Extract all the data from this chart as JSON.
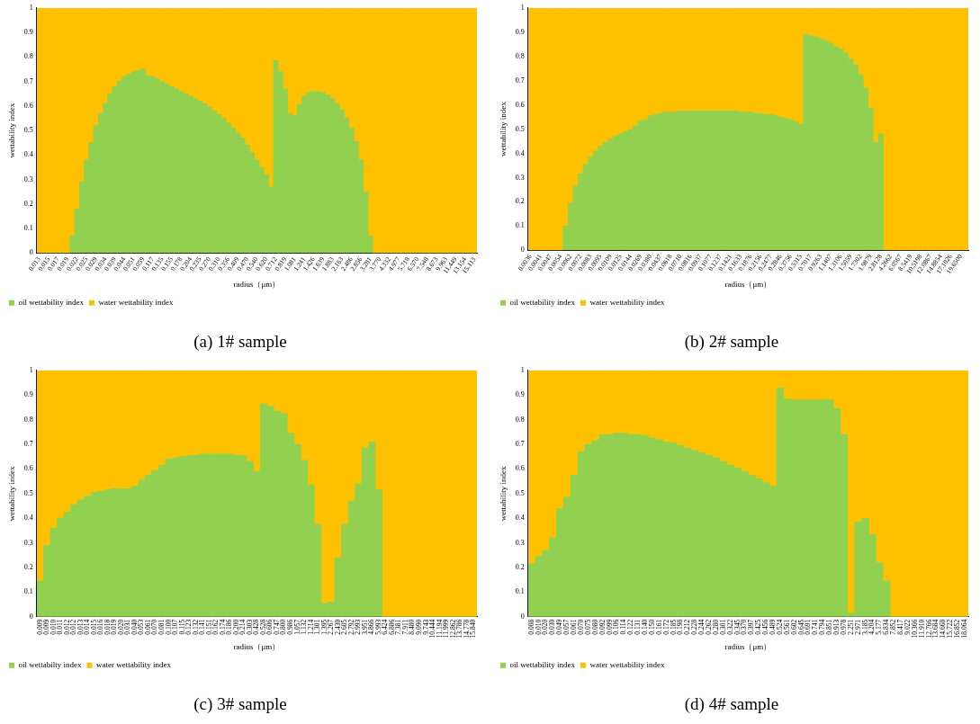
{
  "chart_data": [
    {
      "type": "bar",
      "title": "(a) 1# sample",
      "xlabel": "radius（μm）",
      "ylabel": "wettability index",
      "stacked": true,
      "grid": false,
      "legend": "bottom left",
      "ylim": [
        0,
        1
      ],
      "yticks": [
        0,
        0.1,
        0.2,
        0.3,
        0.4,
        0.5,
        0.6,
        0.7,
        0.8,
        0.9,
        1
      ],
      "categories": [
        "0.013",
        null,
        "0.015",
        null,
        "0.017",
        null,
        "0.019",
        null,
        "0.022",
        null,
        "0.025",
        null,
        "0.029",
        null,
        "0.034",
        null,
        "0.039",
        null,
        "0.044",
        null,
        "0.051",
        null,
        "0.059",
        null,
        "0.117",
        null,
        "0.135",
        null,
        "0.155",
        null,
        "0.178",
        null,
        "0.204",
        null,
        "0.235",
        null,
        "0.270",
        null,
        "0.310",
        null,
        "0.356",
        null,
        "0.409",
        null,
        "0.470",
        null,
        "0.540",
        null,
        "0.620",
        null,
        "0.712",
        null,
        "0.819",
        null,
        "1.081",
        null,
        "1.241",
        null,
        "1.426",
        null,
        "1.639",
        null,
        "1.883",
        null,
        "2.163",
        null,
        "2.486",
        null,
        "2.856",
        null,
        "3.281",
        null,
        "3.770",
        null,
        "4.332",
        null,
        "4.977",
        null,
        "5.718",
        null,
        "6.570",
        null,
        "7.548",
        null,
        "8.673",
        null,
        "9.963",
        null,
        "11.449",
        null,
        "13.154",
        null,
        "15.113"
      ],
      "series": [
        {
          "name": "oil wettability index",
          "color": "#92d050",
          "values": [
            0,
            0,
            0,
            0,
            0,
            0,
            0,
            0.07,
            0.18,
            0.29,
            0.38,
            0.45,
            0.52,
            0.57,
            0.61,
            0.65,
            0.68,
            0.7,
            0.72,
            0.73,
            0.74,
            0.745,
            0.75,
            0.725,
            0.72,
            0.71,
            0.7,
            0.69,
            0.68,
            0.67,
            0.66,
            0.65,
            0.64,
            0.63,
            0.62,
            0.61,
            0.595,
            0.58,
            0.565,
            0.55,
            0.53,
            0.51,
            0.49,
            0.47,
            0.44,
            0.41,
            0.38,
            0.35,
            0.32,
            0.27,
            0.785,
            0.74,
            0.67,
            0.57,
            0.56,
            0.605,
            0.64,
            0.655,
            0.66,
            0.66,
            0.655,
            0.645,
            0.63,
            0.61,
            0.585,
            0.55,
            0.51,
            0.455,
            0.38,
            0.25,
            0.07,
            0,
            0,
            0,
            0,
            0,
            0,
            0,
            0,
            0,
            0,
            0,
            0,
            0,
            0,
            0,
            0,
            0,
            0,
            0,
            0,
            0,
            0
          ]
        },
        {
          "name": "water wettability index",
          "color": "#ffc000",
          "values": [
            1,
            1,
            1,
            1,
            1,
            1,
            1,
            0.93,
            0.82,
            0.71,
            0.62,
            0.55,
            0.48,
            0.43,
            0.39,
            0.35,
            0.32,
            0.3,
            0.28,
            0.27,
            0.26,
            0.255,
            0.25,
            0.275,
            0.28,
            0.29,
            0.3,
            0.31,
            0.32,
            0.33,
            0.34,
            0.35,
            0.36,
            0.37,
            0.38,
            0.39,
            0.405,
            0.42,
            0.435,
            0.45,
            0.47,
            0.49,
            0.51,
            0.53,
            0.56,
            0.59,
            0.62,
            0.65,
            0.68,
            0.73,
            0.215,
            0.26,
            0.33,
            0.43,
            0.44,
            0.395,
            0.36,
            0.345,
            0.34,
            0.34,
            0.345,
            0.355,
            0.37,
            0.39,
            0.415,
            0.45,
            0.49,
            0.545,
            0.62,
            0.75,
            0.93,
            1,
            1,
            1,
            1,
            1,
            1,
            1,
            1,
            1,
            1,
            1,
            1,
            1,
            1,
            1,
            1,
            1,
            1,
            1,
            1,
            1,
            1
          ]
        }
      ]
    },
    {
      "type": "bar",
      "title": "(b) 2# sample",
      "xlabel": "radius（μm）",
      "ylabel": "wettability index",
      "stacked": true,
      "grid": false,
      "legend": "bottom left",
      "ylim": [
        0,
        1
      ],
      "yticks": [
        0,
        0.1,
        0.2,
        0.3,
        0.4,
        0.5,
        0.6,
        0.7,
        0.8,
        0.9,
        1
      ],
      "categories": [
        "0.0036",
        null,
        "0.0041",
        null,
        "0.0047",
        null,
        "0.0054",
        null,
        "0.0062",
        null,
        "0.0072",
        null,
        "0.0083",
        null,
        "0.0095",
        null,
        "0.0109",
        null,
        "0.0125",
        null,
        "0.0144",
        null,
        "0.0269",
        null,
        "0.0380",
        null,
        "0.0437",
        null,
        "0.0618",
        null,
        "0.0710",
        null,
        "0.0816",
        null,
        "0.0937",
        null,
        "0.1077",
        null,
        "0.1237",
        null,
        "0.1421",
        null,
        "0.1633",
        null,
        "0.1876",
        null,
        "0.2156",
        null,
        "0.2477",
        null,
        "0.2846",
        null,
        "0.3756",
        null,
        "0.5315",
        null,
        "0.7017",
        null,
        "0.9263",
        null,
        "1.1407",
        null,
        "1.3106",
        null,
        "1.5059",
        null,
        "1.7302",
        null,
        "1.9879",
        null,
        "2.8128",
        null,
        "4.2662",
        null,
        "6.0567",
        null,
        "8.5419",
        null,
        "10.5198",
        null,
        "12.0867",
        null,
        "14.8854",
        null,
        "17.1026",
        null,
        "19.6500",
        null
      ],
      "series": [
        {
          "name": "oil wettability index",
          "color": "#92d050",
          "values": [
            0,
            0,
            0,
            0,
            0,
            0,
            0,
            0.1,
            0.195,
            0.265,
            0.315,
            0.355,
            0.385,
            0.41,
            0.43,
            0.445,
            0.46,
            0.47,
            0.48,
            0.49,
            0.5,
            0.515,
            0.535,
            0.54,
            0.555,
            0.56,
            0.565,
            0.57,
            0.57,
            0.57,
            0.575,
            0.575,
            0.575,
            0.575,
            0.575,
            0.575,
            0.575,
            0.575,
            0.575,
            0.575,
            0.575,
            0.575,
            0.57,
            0.57,
            0.57,
            0.565,
            0.565,
            0.56,
            0.56,
            0.555,
            0.55,
            0.545,
            0.54,
            0.53,
            0.52,
            0.89,
            0.885,
            0.88,
            0.875,
            0.865,
            0.855,
            0.84,
            0.83,
            0.815,
            0.79,
            0.765,
            0.725,
            0.67,
            0.585,
            0.445,
            0.48,
            0,
            0,
            0,
            0,
            0,
            0,
            0,
            0,
            0,
            0,
            0,
            0,
            0,
            0,
            0,
            0,
            0
          ]
        },
        {
          "name": "water wettability index",
          "color": "#ffc000",
          "values": [
            1,
            1,
            1,
            1,
            1,
            1,
            1,
            0.9,
            0.805,
            0.735,
            0.685,
            0.645,
            0.615,
            0.59,
            0.57,
            0.555,
            0.54,
            0.53,
            0.52,
            0.51,
            0.5,
            0.485,
            0.465,
            0.46,
            0.445,
            0.44,
            0.435,
            0.43,
            0.43,
            0.43,
            0.425,
            0.425,
            0.425,
            0.425,
            0.425,
            0.425,
            0.425,
            0.425,
            0.425,
            0.425,
            0.425,
            0.425,
            0.43,
            0.43,
            0.43,
            0.435,
            0.435,
            0.44,
            0.44,
            0.445,
            0.45,
            0.455,
            0.46,
            0.47,
            0.48,
            0.11,
            0.115,
            0.12,
            0.125,
            0.135,
            0.145,
            0.16,
            0.17,
            0.185,
            0.21,
            0.235,
            0.275,
            0.33,
            0.415,
            0.555,
            0.52,
            1,
            1,
            1,
            1,
            1,
            1,
            1,
            1,
            1,
            1,
            1,
            1,
            1,
            1,
            1,
            1,
            1
          ]
        }
      ]
    },
    {
      "type": "bar",
      "title": "(c) 3# sample",
      "xlabel": "radius（μm）",
      "ylabel": "wettability index",
      "stacked": true,
      "grid": false,
      "legend": "bottom left",
      "ylim": [
        0,
        1
      ],
      "yticks": [
        0,
        0.1,
        0.2,
        0.3,
        0.4,
        0.5,
        0.6,
        0.7,
        0.8,
        0.9,
        1
      ],
      "categories": [
        "0.009",
        "0.009",
        "0.010",
        "0.011",
        "0.012",
        "0.012",
        "0.013",
        "0.014",
        "0.015",
        "0.016",
        "0.018",
        "0.019",
        "0.020",
        "0.031",
        "0.040",
        "0.053",
        "0.061",
        "0.070",
        "0.081",
        "0.100",
        "0.107",
        "0.115",
        "0.123",
        "0.132",
        "0.141",
        "0.151",
        "0.162",
        "0.174",
        "0.186",
        "0.200",
        "0.214",
        "0.303",
        "0.428",
        "0.528",
        "0.606",
        "0.747",
        "0.800",
        "0.986",
        "1.057",
        "1.132",
        "1.214",
        "1.301",
        "1.395",
        "2.267",
        "2.430",
        "2.605",
        "2.792",
        "2.993",
        "3.951",
        "4.866",
        "5.993",
        "6.424",
        "6.886",
        "7.381",
        "7.911",
        "8.480",
        "9.090",
        "9.743",
        "10.444",
        "11.194",
        "11.999",
        "12.862",
        "13.786",
        "14.778",
        "15.840"
      ],
      "series": [
        {
          "name": "oil wettabilty index",
          "color": "#92d050",
          "values": [
            0.145,
            0.29,
            0.36,
            0.4,
            0.425,
            0.455,
            0.475,
            0.49,
            0.505,
            0.51,
            0.515,
            0.52,
            0.52,
            0.52,
            0.53,
            0.555,
            0.575,
            0.595,
            0.615,
            0.64,
            0.645,
            0.65,
            0.655,
            0.655,
            0.66,
            0.66,
            0.66,
            0.66,
            0.66,
            0.655,
            0.655,
            0.63,
            0.59,
            0.865,
            0.855,
            0.835,
            0.825,
            0.745,
            0.7,
            0.635,
            0.535,
            0.375,
            0.055,
            0.06,
            0.24,
            0.375,
            0.47,
            0.54,
            0.685,
            0.71,
            0.515,
            0,
            0,
            0,
            0,
            0,
            0,
            0,
            0,
            0,
            0,
            0,
            0,
            0,
            0
          ]
        },
        {
          "name": "water wettability index",
          "color": "#ffc000",
          "values": [
            0.855,
            0.71,
            0.64,
            0.6,
            0.575,
            0.545,
            0.525,
            0.51,
            0.495,
            0.49,
            0.485,
            0.48,
            0.48,
            0.48,
            0.47,
            0.445,
            0.425,
            0.405,
            0.385,
            0.36,
            0.355,
            0.35,
            0.345,
            0.345,
            0.34,
            0.34,
            0.34,
            0.34,
            0.34,
            0.345,
            0.345,
            0.37,
            0.41,
            0.135,
            0.145,
            0.165,
            0.175,
            0.255,
            0.3,
            0.365,
            0.465,
            0.625,
            0.945,
            0.94,
            0.76,
            0.625,
            0.53,
            0.46,
            0.315,
            0.29,
            0.485,
            1,
            1,
            1,
            1,
            1,
            1,
            1,
            1,
            1,
            1,
            1,
            1,
            1,
            1
          ]
        }
      ]
    },
    {
      "type": "bar",
      "title": "(d) 4# sample",
      "xlabel": "radius（μm）",
      "ylabel": "wettability index",
      "stacked": true,
      "grid": false,
      "legend": "bottom left",
      "ylim": [
        0,
        1
      ],
      "yticks": [
        0,
        0.1,
        0.2,
        0.3,
        0.4,
        0.5,
        0.6,
        0.7,
        0.8,
        0.9,
        1
      ],
      "categories": [
        "0.008",
        "0.010",
        "0.020",
        "0.030",
        "0.049",
        "0.057",
        "0.061",
        "0.070",
        "0.075",
        "0.080",
        "0.092",
        "0.099",
        "0.106",
        "0.114",
        "0.122",
        "0.131",
        "0.140",
        "0.150",
        "0.161",
        "0.172",
        "0.185",
        "0.198",
        "0.212",
        "0.228",
        "0.244",
        "0.262",
        "0.280",
        "0.301",
        "0.322",
        "0.345",
        "0.370",
        "0.397",
        "0.425",
        "0.456",
        "0.489",
        "0.524",
        "0.561",
        "0.602",
        "0.645",
        "0.691",
        "0.741",
        "0.794",
        "0.851",
        "0.913",
        "0.978",
        "2.251",
        "2.971",
        "3.185",
        "4.204",
        "5.177",
        "6.834",
        "7.852",
        "8.417",
        "9.022",
        "10.366",
        "11.910",
        "12.766",
        "13.684",
        "14.668",
        "15.722",
        "16.852",
        "18.064"
      ],
      "series": [
        {
          "name": "oil wettability index",
          "color": "#92d050",
          "values": [
            0.215,
            0.245,
            0.27,
            0.32,
            0.44,
            0.485,
            0.575,
            0.67,
            0.7,
            0.715,
            0.74,
            0.74,
            0.745,
            0.745,
            0.74,
            0.74,
            0.735,
            0.725,
            0.72,
            0.71,
            0.705,
            0.695,
            0.685,
            0.675,
            0.665,
            0.655,
            0.645,
            0.63,
            0.615,
            0.605,
            0.59,
            0.575,
            0.56,
            0.545,
            0.53,
            0.93,
            0.885,
            0.88,
            0.88,
            0.88,
            0.88,
            0.88,
            0.88,
            0.845,
            0.74,
            0.015,
            0.385,
            0.4,
            0.335,
            0.22,
            0.145,
            0,
            0,
            0,
            0,
            0,
            0,
            0,
            0,
            0,
            0,
            0
          ]
        },
        {
          "name": "water wettability index",
          "color": "#ffc000",
          "values": [
            0.785,
            0.755,
            0.73,
            0.68,
            0.56,
            0.515,
            0.425,
            0.33,
            0.3,
            0.285,
            0.26,
            0.26,
            0.255,
            0.255,
            0.26,
            0.26,
            0.265,
            0.275,
            0.28,
            0.29,
            0.295,
            0.305,
            0.315,
            0.325,
            0.335,
            0.345,
            0.355,
            0.37,
            0.385,
            0.395,
            0.41,
            0.425,
            0.44,
            0.455,
            0.47,
            0.07,
            0.115,
            0.12,
            0.12,
            0.12,
            0.12,
            0.12,
            0.12,
            0.155,
            0.26,
            0.985,
            0.615,
            0.6,
            0.665,
            0.78,
            0.855,
            1,
            1,
            1,
            1,
            1,
            1,
            1,
            1,
            1,
            1,
            1
          ]
        }
      ]
    }
  ]
}
